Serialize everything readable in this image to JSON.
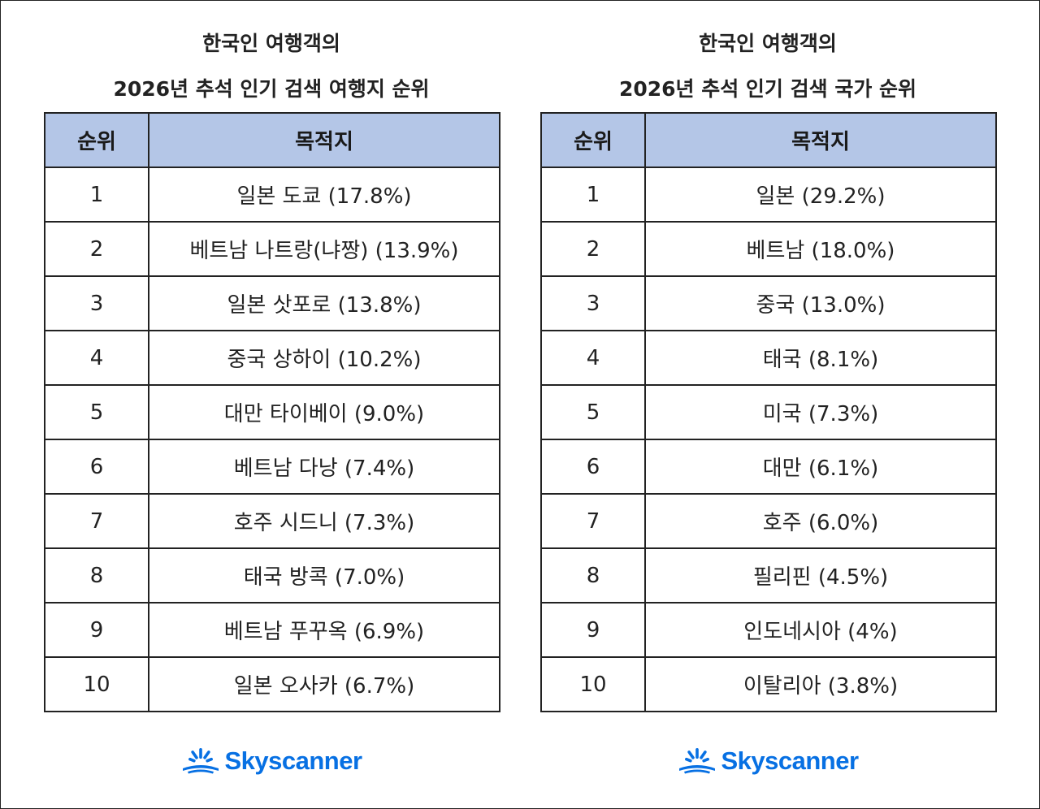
{
  "colors": {
    "header_bg": "#b4c6e7",
    "brand": "#0770e3",
    "border": "#222222"
  },
  "left": {
    "title_line1": "한국인 여행객의",
    "title_line2": "2026년 추석 인기 검색 여행지 순위",
    "col_rank": "순위",
    "col_dest": "목적지",
    "rows": [
      {
        "rank": "1",
        "dest": "일본 도쿄 (17.8%)"
      },
      {
        "rank": "2",
        "dest": "베트남 나트랑(냐짱) (13.9%)"
      },
      {
        "rank": "3",
        "dest": "일본 삿포로 (13.8%)"
      },
      {
        "rank": "4",
        "dest": "중국 상하이 (10.2%)"
      },
      {
        "rank": "5",
        "dest": "대만 타이베이 (9.0%)"
      },
      {
        "rank": "6",
        "dest": "베트남 다낭 (7.4%)"
      },
      {
        "rank": "7",
        "dest": "호주 시드니 (7.3%)"
      },
      {
        "rank": "8",
        "dest": "태국 방콕 (7.0%)"
      },
      {
        "rank": "9",
        "dest": "베트남 푸꾸옥 (6.9%)"
      },
      {
        "rank": "10",
        "dest": "일본 오사카 (6.7%)"
      }
    ],
    "logo_text": "Skyscanner",
    "logo_icon": "sunrise-icon"
  },
  "right": {
    "title_line1": "한국인 여행객의",
    "title_line2": "2026년 추석 인기 검색 국가 순위",
    "col_rank": "순위",
    "col_dest": "목적지",
    "rows": [
      {
        "rank": "1",
        "dest": "일본 (29.2%)"
      },
      {
        "rank": "2",
        "dest": "베트남 (18.0%)"
      },
      {
        "rank": "3",
        "dest": "중국 (13.0%)"
      },
      {
        "rank": "4",
        "dest": "태국 (8.1%)"
      },
      {
        "rank": "5",
        "dest": "미국 (7.3%)"
      },
      {
        "rank": "6",
        "dest": "대만 (6.1%)"
      },
      {
        "rank": "7",
        "dest": "호주 (6.0%)"
      },
      {
        "rank": "8",
        "dest": "필리핀 (4.5%)"
      },
      {
        "rank": "9",
        "dest": "인도네시아 (4%)"
      },
      {
        "rank": "10",
        "dest": "이탈리아 (3.8%)"
      }
    ],
    "logo_text": "Skyscanner",
    "logo_icon": "sunrise-icon"
  }
}
